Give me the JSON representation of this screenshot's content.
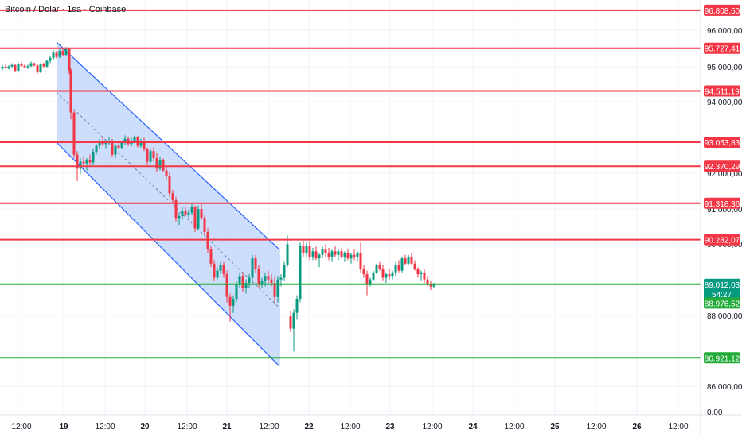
{
  "symbol_title": "Bitcoin / Dolar · 1sa · Coinbase",
  "colors": {
    "up": "#089981",
    "down": "#f23645",
    "resistance": "#f23645",
    "support": "#22ab38",
    "channel_fill": "#bcd2fb",
    "channel_line": "#2962ff",
    "grid": "#f0f3fa",
    "axis_text": "#131722"
  },
  "chart_data": {
    "type": "candlestick",
    "title": "Bitcoin / Dolar · 1sa · Coinbase",
    "x_ticks": [
      "12:00",
      "19",
      "12:00",
      "20",
      "12:00",
      "21",
      "12:00",
      "22",
      "12:00",
      "23",
      "12:00",
      "24",
      "12:00",
      "25",
      "12:00",
      "26",
      "12:00"
    ],
    "y_ticks": [
      "96.000,00",
      "95.000,00",
      "94.000,00",
      "92.000,00",
      "91.000,00",
      "90.000,00",
      "88.000,00",
      "86.000,00",
      "0.00"
    ],
    "ylim": [
      85300,
      97100
    ],
    "resistance_lines": [
      {
        "value": 96808.5,
        "label": "96.808,50"
      },
      {
        "value": 95727.41,
        "label": "95.727,41"
      },
      {
        "value": 94511.19,
        "label": "94.511,19"
      },
      {
        "value": 93053.83,
        "label": "93.053,83"
      },
      {
        "value": 92370.29,
        "label": "92.370,29"
      },
      {
        "value": 91318.36,
        "label": "91.318,36"
      },
      {
        "value": 90282.07,
        "label": "90.282,07"
      }
    ],
    "support_lines": [
      {
        "value": 89012.03,
        "label": "89.012,03"
      },
      {
        "value": 86921.12,
        "label": "86.921,12"
      }
    ],
    "current_price": {
      "value": 89012.03,
      "label": "89.012,03",
      "countdown": "54:27"
    },
    "secondary_price": {
      "value": 88976.52,
      "label": "88.976,52"
    },
    "channel": {
      "top_start": [
        68,
        95900
      ],
      "top_end": [
        348,
        90000
      ],
      "bottom_start": [
        68,
        93050
      ],
      "bottom_end": [
        348,
        86680
      ],
      "mid_start": [
        68,
        94470
      ],
      "mid_end": [
        348,
        88340
      ]
    },
    "candles": [
      [
        0,
        95150,
        95250,
        95100,
        95200
      ],
      [
        4,
        95200,
        95260,
        95150,
        95180
      ],
      [
        8,
        95180,
        95240,
        95120,
        95210
      ],
      [
        12,
        95210,
        95300,
        95170,
        95250
      ],
      [
        16,
        95250,
        95280,
        95060,
        95090
      ],
      [
        20,
        95090,
        95320,
        95050,
        95290
      ],
      [
        24,
        95290,
        95330,
        95200,
        95230
      ],
      [
        28,
        95230,
        95280,
        95150,
        95190
      ],
      [
        32,
        95190,
        95260,
        95130,
        95220
      ],
      [
        36,
        95220,
        95350,
        95190,
        95300
      ],
      [
        40,
        95300,
        95320,
        95210,
        95240
      ],
      [
        44,
        95240,
        95270,
        95000,
        95050
      ],
      [
        48,
        95050,
        95300,
        95020,
        95280
      ],
      [
        52,
        95280,
        95320,
        95180,
        95210
      ],
      [
        56,
        95210,
        95400,
        95170,
        95370
      ],
      [
        60,
        95370,
        95500,
        95300,
        95450
      ],
      [
        64,
        95450,
        95680,
        95400,
        95600
      ],
      [
        68,
        95600,
        95660,
        95430,
        95480
      ],
      [
        72,
        95480,
        95700,
        95440,
        95650
      ],
      [
        76,
        95650,
        95700,
        95500,
        95540
      ],
      [
        80,
        95540,
        95760,
        95500,
        95700
      ],
      [
        84,
        95700,
        95720,
        95000,
        95100
      ],
      [
        86,
        95100,
        95150,
        93700,
        93900
      ],
      [
        90,
        93900,
        93950,
        92600,
        92700
      ],
      [
        94,
        92700,
        92800,
        91950,
        92300
      ],
      [
        98,
        92300,
        92600,
        92150,
        92500
      ],
      [
        102,
        92500,
        92650,
        92350,
        92450
      ],
      [
        106,
        92450,
        92600,
        92250,
        92550
      ],
      [
        110,
        92550,
        92700,
        92400,
        92480
      ],
      [
        114,
        92480,
        92850,
        92400,
        92780
      ],
      [
        118,
        92780,
        93000,
        92700,
        92950
      ],
      [
        122,
        92950,
        93150,
        92850,
        93080
      ],
      [
        126,
        93080,
        93200,
        92950,
        93000
      ],
      [
        130,
        93000,
        93120,
        92880,
        93050
      ],
      [
        134,
        93050,
        93200,
        92980,
        93100
      ],
      [
        138,
        93100,
        93150,
        92650,
        92700
      ],
      [
        142,
        92700,
        93000,
        92600,
        92950
      ],
      [
        146,
        92950,
        93100,
        92850,
        92900
      ],
      [
        150,
        92900,
        93100,
        92850,
        93050
      ],
      [
        154,
        93050,
        93250,
        92980,
        93150
      ],
      [
        158,
        93150,
        93220,
        92950,
        93000
      ],
      [
        162,
        93000,
        93180,
        92920,
        93100
      ],
      [
        166,
        93100,
        93250,
        93020,
        93200
      ],
      [
        170,
        93200,
        93230,
        92900,
        92950
      ],
      [
        174,
        92950,
        93150,
        92900,
        93050
      ],
      [
        178,
        93050,
        93180,
        92800,
        92850
      ],
      [
        182,
        92850,
        92900,
        92400,
        92500
      ],
      [
        186,
        92500,
        92850,
        92450,
        92800
      ],
      [
        190,
        92800,
        92900,
        92500,
        92600
      ],
      [
        194,
        92600,
        92750,
        92200,
        92300
      ],
      [
        198,
        92300,
        92650,
        92250,
        92550
      ],
      [
        202,
        92550,
        92600,
        92200,
        92250
      ],
      [
        206,
        92250,
        92350,
        92000,
        92100
      ],
      [
        210,
        92100,
        92200,
        91500,
        91600
      ],
      [
        214,
        91600,
        91700,
        91300,
        91400
      ],
      [
        218,
        91400,
        91500,
        90800,
        90900
      ],
      [
        222,
        90900,
        91050,
        90700,
        90950
      ],
      [
        226,
        90950,
        91200,
        90850,
        91100
      ],
      [
        230,
        91100,
        91200,
        90950,
        91000
      ],
      [
        234,
        91000,
        91150,
        90900,
        91050
      ],
      [
        238,
        91050,
        91300,
        91000,
        91200
      ],
      [
        242,
        91200,
        91250,
        90500,
        90600
      ],
      [
        246,
        90600,
        91250,
        90550,
        91150
      ],
      [
        250,
        91150,
        91300,
        90850,
        90900
      ],
      [
        254,
        90900,
        91000,
        90400,
        90500
      ],
      [
        258,
        90500,
        90600,
        89900,
        90000
      ],
      [
        262,
        90000,
        90100,
        89500,
        89600
      ],
      [
        266,
        89600,
        89700,
        89100,
        89200
      ],
      [
        270,
        89200,
        89500,
        89150,
        89400
      ],
      [
        274,
        89400,
        89650,
        89300,
        89550
      ],
      [
        278,
        89550,
        89650,
        89200,
        89300
      ],
      [
        282,
        89300,
        89400,
        88500,
        88650
      ],
      [
        286,
        88650,
        88750,
        87950,
        88400
      ],
      [
        290,
        88400,
        88700,
        88200,
        88600
      ],
      [
        294,
        88600,
        89100,
        88500,
        89000
      ],
      [
        298,
        89000,
        89350,
        88900,
        89250
      ],
      [
        302,
        89250,
        89350,
        88800,
        88900
      ],
      [
        306,
        88900,
        89150,
        88750,
        89050
      ],
      [
        310,
        89050,
        89300,
        88900,
        89200
      ],
      [
        314,
        89200,
        89850,
        89100,
        89750
      ],
      [
        318,
        89750,
        89850,
        89350,
        89450
      ],
      [
        322,
        89450,
        89550,
        88900,
        89000
      ],
      [
        326,
        89000,
        89200,
        88900,
        89100
      ],
      [
        330,
        89100,
        89350,
        88950,
        89250
      ],
      [
        334,
        89250,
        89400,
        89050,
        89150
      ],
      [
        338,
        89150,
        89300,
        88950,
        89050
      ],
      [
        342,
        89050,
        89250,
        88500,
        88650
      ],
      [
        346,
        88650,
        89250,
        88500,
        89150
      ],
      [
        350,
        89150,
        89300,
        88950,
        89200
      ],
      [
        354,
        89200,
        89650,
        89100,
        89550
      ],
      [
        358,
        89550,
        90400,
        89500,
        90150
      ],
      [
        362,
        88100,
        88250,
        87650,
        87750
      ],
      [
        366,
        87750,
        88300,
        87100,
        88200
      ],
      [
        370,
        88200,
        88700,
        88000,
        88600
      ],
      [
        374,
        88600,
        90200,
        88500,
        90100
      ],
      [
        378,
        90100,
        90250,
        89800,
        89900
      ],
      [
        382,
        89900,
        90200,
        89800,
        90100
      ],
      [
        386,
        90100,
        90250,
        89700,
        89800
      ],
      [
        390,
        89800,
        90050,
        89700,
        89950
      ],
      [
        394,
        89950,
        90100,
        89700,
        89750
      ],
      [
        398,
        89750,
        89900,
        89500,
        89850
      ],
      [
        402,
        89850,
        90100,
        89750,
        90000
      ],
      [
        406,
        90000,
        90150,
        89800,
        89900
      ],
      [
        410,
        89900,
        90050,
        89700,
        89800
      ],
      [
        414,
        89800,
        90000,
        89650,
        89950
      ],
      [
        418,
        89950,
        90100,
        89800,
        89850
      ],
      [
        422,
        89850,
        90000,
        89700,
        89950
      ],
      [
        426,
        89950,
        90050,
        89750,
        89800
      ],
      [
        430,
        89800,
        89950,
        89650,
        89900
      ],
      [
        434,
        89900,
        90000,
        89700,
        89750
      ],
      [
        438,
        89750,
        89900,
        89600,
        89850
      ],
      [
        442,
        89850,
        90000,
        89700,
        89800
      ],
      [
        446,
        89800,
        89950,
        89650,
        89900
      ],
      [
        450,
        89900,
        90200,
        89350,
        89450
      ],
      [
        454,
        89450,
        89550,
        89200,
        89300
      ],
      [
        458,
        89300,
        89400,
        88700,
        89000
      ],
      [
        462,
        89000,
        89200,
        88950,
        89150
      ],
      [
        466,
        89150,
        89400,
        89100,
        89350
      ],
      [
        470,
        89350,
        89600,
        89300,
        89550
      ],
      [
        474,
        89550,
        89650,
        89400,
        89450
      ],
      [
        478,
        89450,
        89550,
        89100,
        89200
      ],
      [
        482,
        89200,
        89350,
        89050,
        89300
      ],
      [
        486,
        89300,
        89450,
        89150,
        89250
      ],
      [
        490,
        89250,
        89400,
        89150,
        89350
      ],
      [
        494,
        89350,
        89650,
        89250,
        89550
      ],
      [
        498,
        89550,
        89700,
        89350,
        89400
      ],
      [
        502,
        89400,
        89800,
        89350,
        89750
      ],
      [
        506,
        89750,
        89850,
        89550,
        89600
      ],
      [
        510,
        89600,
        89850,
        89550,
        89800
      ],
      [
        514,
        89800,
        89900,
        89550,
        89600
      ],
      [
        518,
        89600,
        89700,
        89400,
        89450
      ],
      [
        522,
        89450,
        89500,
        89200,
        89300
      ],
      [
        526,
        89300,
        89400,
        89100,
        89350
      ],
      [
        530,
        89350,
        89450,
        89050,
        89150
      ],
      [
        534,
        89150,
        89250,
        88950,
        89000
      ],
      [
        538,
        89000,
        89100,
        88850,
        88950
      ],
      [
        542,
        88950,
        89050,
        88900,
        88990
      ]
    ]
  }
}
